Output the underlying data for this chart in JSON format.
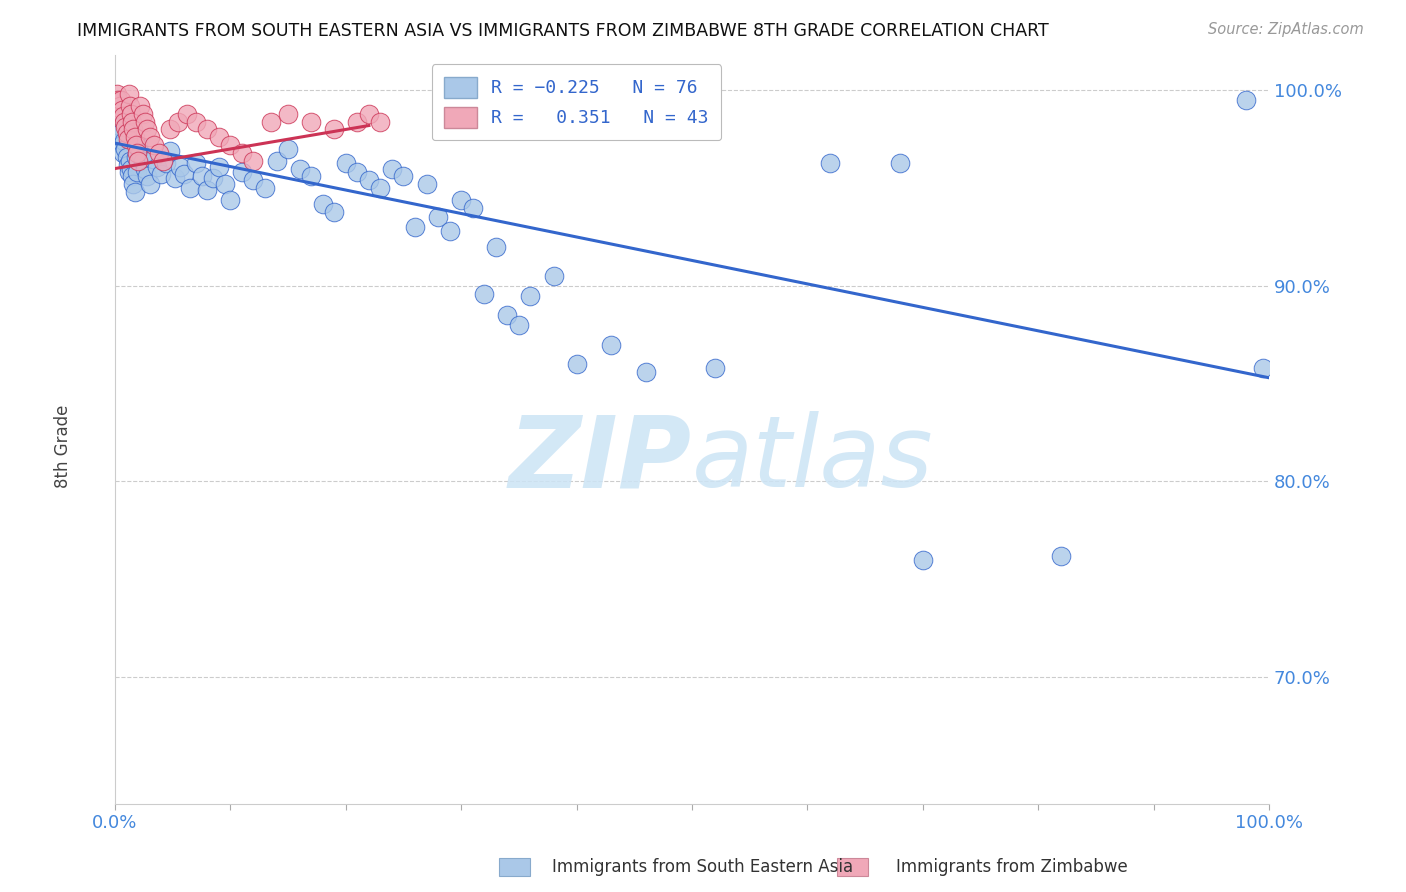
{
  "title": "IMMIGRANTS FROM SOUTH EASTERN ASIA VS IMMIGRANTS FROM ZIMBABWE 8TH GRADE CORRELATION CHART",
  "source": "Source: ZipAtlas.com",
  "ylabel": "8th Grade",
  "xlim": [
    0,
    1.0
  ],
  "ylim": [
    0.635,
    1.018
  ],
  "yticks": [
    0.7,
    0.8,
    0.9,
    1.0
  ],
  "ytick_labels": [
    "70.0%",
    "80.0%",
    "90.0%",
    "100.0%"
  ],
  "blue_R": -0.225,
  "blue_N": 76,
  "pink_R": 0.351,
  "pink_N": 43,
  "blue_color": "#aac8e8",
  "pink_color": "#f0a8b8",
  "blue_line_color": "#3366cc",
  "pink_line_color": "#cc3355",
  "legend_label_blue": "Immigrants from South Eastern Asia",
  "legend_label_pink": "Immigrants from Zimbabwe",
  "watermark_zip": "ZIP",
  "watermark_atlas": "atlas",
  "blue_trend_x0": 0.0,
  "blue_trend_y0": 0.973,
  "blue_trend_x1": 1.0,
  "blue_trend_y1": 0.853,
  "pink_trend_x0": 0.0,
  "pink_trend_y0": 0.96,
  "pink_trend_x1": 0.22,
  "pink_trend_y1": 0.982,
  "blue_scatter_x": [
    0.003,
    0.004,
    0.005,
    0.006,
    0.007,
    0.008,
    0.009,
    0.01,
    0.011,
    0.012,
    0.013,
    0.014,
    0.015,
    0.016,
    0.017,
    0.018,
    0.019,
    0.02,
    0.022,
    0.024,
    0.026,
    0.028,
    0.03,
    0.033,
    0.036,
    0.04,
    0.044,
    0.048,
    0.052,
    0.056,
    0.06,
    0.065,
    0.07,
    0.075,
    0.08,
    0.085,
    0.09,
    0.095,
    0.1,
    0.11,
    0.12,
    0.13,
    0.14,
    0.15,
    0.16,
    0.17,
    0.18,
    0.19,
    0.2,
    0.21,
    0.22,
    0.23,
    0.24,
    0.25,
    0.26,
    0.27,
    0.28,
    0.29,
    0.3,
    0.31,
    0.32,
    0.33,
    0.34,
    0.35,
    0.36,
    0.38,
    0.4,
    0.43,
    0.46,
    0.52,
    0.62,
    0.68,
    0.7,
    0.82,
    0.98,
    0.995
  ],
  "blue_scatter_y": [
    0.975,
    0.982,
    0.978,
    0.972,
    0.968,
    0.974,
    0.97,
    0.966,
    0.962,
    0.958,
    0.964,
    0.96,
    0.956,
    0.952,
    0.948,
    0.966,
    0.958,
    0.972,
    0.968,
    0.964,
    0.96,
    0.956,
    0.952,
    0.965,
    0.961,
    0.957,
    0.963,
    0.969,
    0.955,
    0.961,
    0.957,
    0.95,
    0.963,
    0.956,
    0.949,
    0.955,
    0.961,
    0.952,
    0.944,
    0.958,
    0.954,
    0.95,
    0.964,
    0.97,
    0.96,
    0.956,
    0.942,
    0.938,
    0.963,
    0.958,
    0.954,
    0.95,
    0.96,
    0.956,
    0.93,
    0.952,
    0.935,
    0.928,
    0.944,
    0.94,
    0.896,
    0.92,
    0.885,
    0.88,
    0.895,
    0.905,
    0.86,
    0.87,
    0.856,
    0.858,
    0.963,
    0.963,
    0.76,
    0.762,
    0.995,
    0.858
  ],
  "pink_scatter_x": [
    0.002,
    0.003,
    0.004,
    0.005,
    0.006,
    0.007,
    0.008,
    0.009,
    0.01,
    0.011,
    0.012,
    0.013,
    0.014,
    0.015,
    0.016,
    0.017,
    0.018,
    0.019,
    0.02,
    0.022,
    0.024,
    0.026,
    0.028,
    0.03,
    0.034,
    0.038,
    0.042,
    0.048,
    0.055,
    0.062,
    0.07,
    0.08,
    0.09,
    0.1,
    0.11,
    0.12,
    0.135,
    0.15,
    0.17,
    0.19,
    0.21,
    0.22,
    0.23
  ],
  "pink_scatter_y": [
    0.998,
    0.995,
    0.992,
    0.995,
    0.99,
    0.987,
    0.984,
    0.981,
    0.978,
    0.975,
    0.998,
    0.992,
    0.988,
    0.984,
    0.98,
    0.976,
    0.972,
    0.968,
    0.964,
    0.992,
    0.988,
    0.984,
    0.98,
    0.976,
    0.972,
    0.968,
    0.964,
    0.98,
    0.984,
    0.988,
    0.984,
    0.98,
    0.976,
    0.972,
    0.968,
    0.964,
    0.984,
    0.988,
    0.984,
    0.98,
    0.984,
    0.988,
    0.984
  ]
}
